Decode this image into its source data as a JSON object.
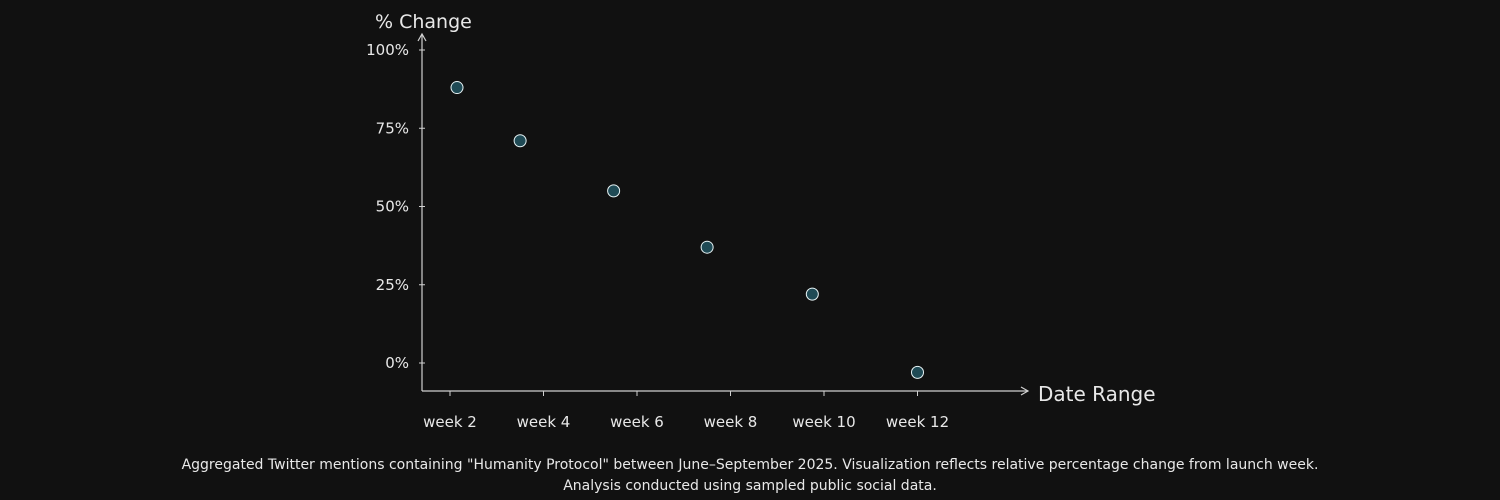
{
  "chart_data": {
    "type": "scatter",
    "ylabel": "% Change",
    "xlabel": "Date Range",
    "x_ticks": [
      "week 2",
      "week 4",
      "week 6",
      "week 8",
      "week 10",
      "week 12"
    ],
    "y_ticks": [
      "100%",
      "75%",
      "50%",
      "25%",
      "0%"
    ],
    "y_tick_values": [
      100,
      75,
      50,
      25,
      0
    ],
    "ylim": [
      -9,
      104
    ],
    "xlim": [
      1.4,
      14.8
    ],
    "series": [
      {
        "points": [
          {
            "x": 2.15,
            "y": 88
          },
          {
            "x": 3.5,
            "y": 71
          },
          {
            "x": 5.5,
            "y": 55
          },
          {
            "x": 7.5,
            "y": 37
          },
          {
            "x": 9.75,
            "y": 22
          },
          {
            "x": 12.0,
            "y": -3
          }
        ]
      }
    ],
    "grid": false,
    "colors": {
      "background": "#111111",
      "axis": "#d0d0d0",
      "text": "#e8e8e8",
      "marker_fill": "#1f4a55",
      "marker_stroke": "#e8f4f6"
    }
  },
  "caption": {
    "line1": "Aggregated Twitter mentions containing \"Humanity Protocol\" between June–September 2025. Visualization reflects relative percentage change from launch week.",
    "line2": "Analysis conducted using sampled public social data."
  }
}
